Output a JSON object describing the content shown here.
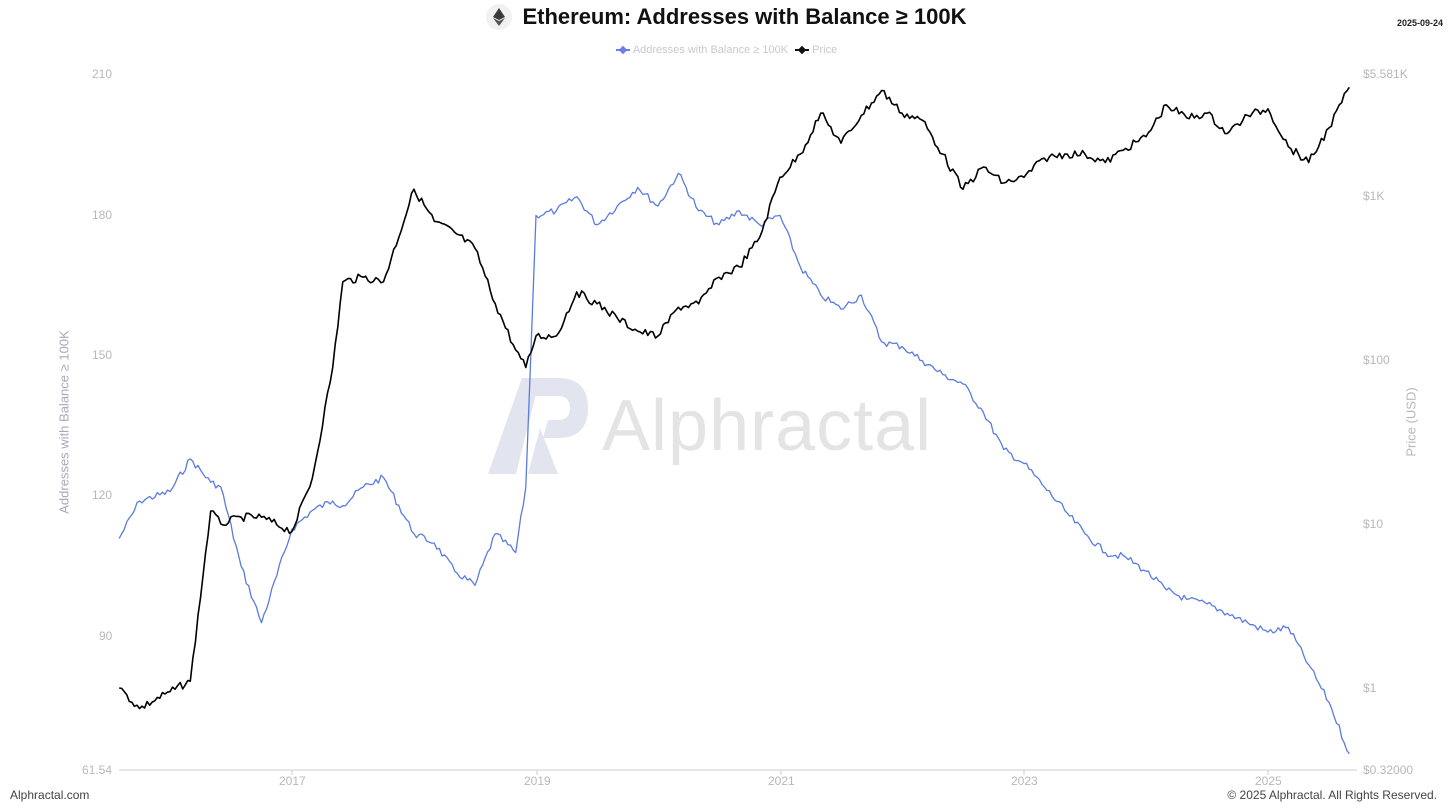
{
  "header": {
    "title": "Ethereum: Addresses with Balance ≥ 100K",
    "date": "2025-09-24",
    "icon": "ethereum-icon"
  },
  "legend": {
    "items": [
      {
        "label": "Addresses with Balance ≥ 100K",
        "color": "#5b7be0"
      },
      {
        "label": "Price",
        "color": "#000000"
      }
    ]
  },
  "axes": {
    "left_title": "Addresses with Balance ≥ 100K",
    "right_title": "Price (USD)",
    "left_ticks": [
      "210",
      "180",
      "150",
      "120",
      "90",
      "61.54"
    ],
    "right_ticks": [
      "$5.581K",
      "$1K",
      "$100",
      "$10",
      "$1",
      "$0.32000"
    ],
    "x_ticks": [
      "2017",
      "2019",
      "2021",
      "2023",
      "2025"
    ]
  },
  "watermark": {
    "text": "Alphractal"
  },
  "footer": {
    "left": "Alphractal.com",
    "right": "© 2025 Alphractal. All Rights Reserved."
  },
  "colors": {
    "addresses": "#5b7be0",
    "price": "#000000",
    "axis_text": "#b8b8b8",
    "axis_line": "#cccccc"
  },
  "chart_data": {
    "type": "line",
    "title": "Ethereum: Addresses with Balance ≥ 100K",
    "xlabel": "",
    "ylabel": "Addresses with Balance ≥ 100K",
    "ylabel_right": "Price (USD)",
    "ylim": [
      61.54,
      210
    ],
    "ylim_right": [
      0.32,
      5581
    ],
    "y_right_scale": "log",
    "grid": false,
    "legend_position": "top-center",
    "x": [
      "2015-08",
      "2015-10",
      "2016-01",
      "2016-03",
      "2016-05",
      "2016-06",
      "2016-08",
      "2016-10",
      "2017-01",
      "2017-03",
      "2017-05",
      "2017-06",
      "2017-08",
      "2017-10",
      "2018-01",
      "2018-03",
      "2018-05",
      "2018-07",
      "2018-09",
      "2018-11",
      "2018-12",
      "2019-01",
      "2019-03",
      "2019-05",
      "2019-07",
      "2019-09",
      "2019-11",
      "2020-01",
      "2020-03",
      "2020-05",
      "2020-07",
      "2020-09",
      "2020-11",
      "2021-01",
      "2021-03",
      "2021-05",
      "2021-07",
      "2021-09",
      "2021-11",
      "2022-01",
      "2022-03",
      "2022-05",
      "2022-07",
      "2022-09",
      "2022-11",
      "2023-01",
      "2023-03",
      "2023-05",
      "2023-07",
      "2023-09",
      "2023-11",
      "2024-01",
      "2024-03",
      "2024-05",
      "2024-07",
      "2024-09",
      "2024-11",
      "2025-01",
      "2025-03",
      "2025-05",
      "2025-07",
      "2025-09"
    ],
    "series": [
      {
        "name": "Addresses with Balance ≥ 100K",
        "axis": "left",
        "values": [
          111,
          119,
          121,
          128,
          123,
          122,
          105,
          93,
          113,
          117,
          119,
          118,
          122,
          124,
          112,
          110,
          104,
          101,
          112,
          108,
          122,
          180,
          181,
          184,
          178,
          182,
          186,
          182,
          189,
          181,
          178,
          181,
          178,
          180,
          169,
          163,
          160,
          163,
          153,
          152,
          149,
          146,
          144,
          138,
          130,
          127,
          122,
          117,
          112,
          108,
          107,
          104,
          100,
          98,
          97,
          95,
          93,
          91,
          92,
          84,
          76,
          65
        ]
      },
      {
        "name": "Price",
        "axis": "right",
        "values": [
          1.0,
          0.75,
          0.95,
          1.1,
          12,
          10,
          11,
          11,
          9,
          19,
          90,
          300,
          320,
          300,
          1100,
          700,
          600,
          480,
          220,
          115,
          90,
          140,
          140,
          260,
          220,
          180,
          150,
          140,
          210,
          220,
          320,
          370,
          560,
          1300,
          1800,
          3200,
          2100,
          3100,
          4400,
          3200,
          2900,
          1800,
          1100,
          1500,
          1200,
          1300,
          1700,
          1800,
          1800,
          1600,
          1950,
          2300,
          3600,
          3000,
          3200,
          2400,
          3100,
          3400,
          2000,
          1600,
          2600,
          4600
        ]
      }
    ]
  }
}
